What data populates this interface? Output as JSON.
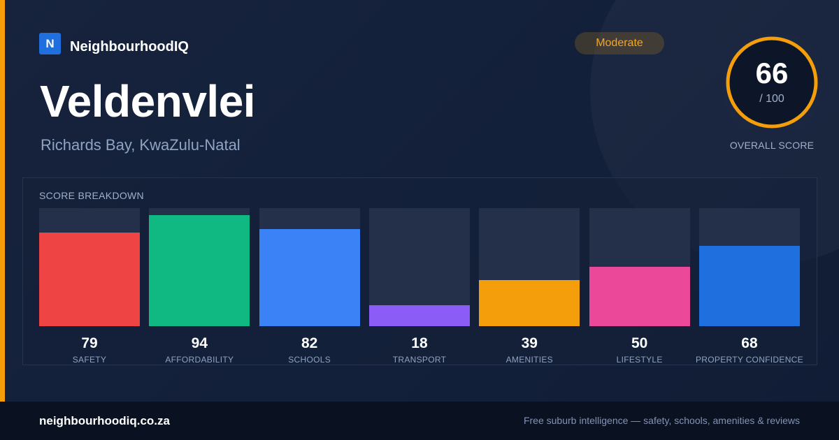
{
  "brand": {
    "logo_letter": "N",
    "name": "NeighbourhoodIQ"
  },
  "suburb": {
    "name": "Veldenvlei",
    "location": "Richards Bay, KwaZulu-Natal"
  },
  "rating_badge": "Moderate",
  "overall": {
    "score": "66",
    "out_of": "/ 100",
    "label": "OVERALL SCORE",
    "fraction": 0.66
  },
  "breakdown": {
    "label": "SCORE BREAKDOWN",
    "items": [
      {
        "label": "SAFETY",
        "value": "79",
        "level": 0.79,
        "color": "#ef4444"
      },
      {
        "label": "AFFORDABILITY",
        "value": "94",
        "level": 0.94,
        "color": "#10b981"
      },
      {
        "label": "SCHOOLS",
        "value": "82",
        "level": 0.82,
        "color": "#3b82f6"
      },
      {
        "label": "TRANSPORT",
        "value": "18",
        "level": 0.18,
        "color": "#8b5cf6"
      },
      {
        "label": "AMENITIES",
        "value": "39",
        "level": 0.39,
        "color": "#f59e0b"
      },
      {
        "label": "LIFESTYLE",
        "value": "50",
        "level": 0.5,
        "color": "#ec4899"
      },
      {
        "label": "PROPERTY CONFIDENCE",
        "value": "68",
        "level": 0.68,
        "color": "#1f6fde"
      }
    ]
  },
  "footer": {
    "url": "neighbourhoodiq.co.za",
    "tagline": "Free suburb intelligence — safety, schools, amenities & reviews"
  },
  "colors": {
    "accent": "#f59e0b",
    "brand_blue": "#1f6fde",
    "background": "#0f1a2e"
  }
}
